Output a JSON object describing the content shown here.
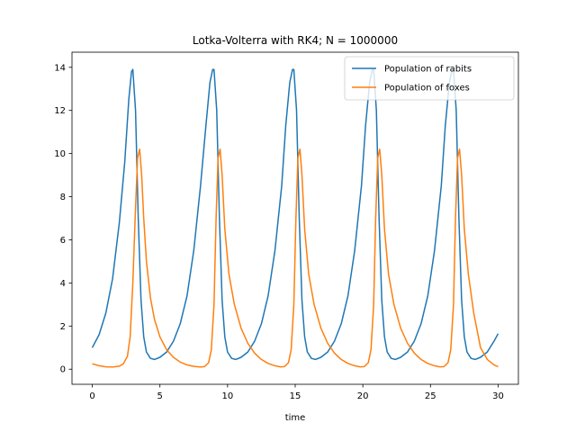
{
  "chart_data": {
    "type": "line",
    "title": "Lotka-Volterra with RK4; N = 1000000",
    "xlabel": "time",
    "ylabel": "",
    "xlim": [
      -1.5,
      31.5
    ],
    "ylim": [
      -0.7,
      14.7
    ],
    "xticks": [
      0,
      5,
      10,
      15,
      20,
      25,
      30
    ],
    "yticks": [
      0,
      2,
      4,
      6,
      8,
      10,
      12,
      14
    ],
    "grid": false,
    "legend_position": "top-right",
    "series": [
      {
        "name": "Population of rabits",
        "color": "#1f77b4",
        "x": [
          0,
          0.5,
          1,
          1.5,
          2,
          2.4,
          2.7,
          2.9,
          3.0,
          3.2,
          3.4,
          3.6,
          3.8,
          4.0,
          4.3,
          4.6,
          5.0,
          5.5,
          6.0,
          6.5,
          7.0,
          7.5,
          8.0,
          8.4,
          8.7,
          8.9,
          9.0,
          9.2,
          9.4,
          9.6,
          9.8,
          10.0,
          10.3,
          10.6,
          11.0,
          11.5,
          12.0,
          12.5,
          13.0,
          13.5,
          14.0,
          14.3,
          14.6,
          14.8,
          14.9,
          15.1,
          15.3,
          15.5,
          15.7,
          15.9,
          16.2,
          16.5,
          16.9,
          17.4,
          17.9,
          18.4,
          18.9,
          19.4,
          19.9,
          20.2,
          20.5,
          20.7,
          20.8,
          21.0,
          21.2,
          21.4,
          21.6,
          21.8,
          22.1,
          22.4,
          22.8,
          23.3,
          23.8,
          24.3,
          24.8,
          25.3,
          25.8,
          26.1,
          26.4,
          26.6,
          26.7,
          26.9,
          27.1,
          27.3,
          27.5,
          27.7,
          28.0,
          28.3,
          28.7,
          29.2,
          29.7,
          30.0
        ],
        "values": [
          1.0,
          1.6,
          2.6,
          4.2,
          6.8,
          9.6,
          12.5,
          13.8,
          13.9,
          12.0,
          7.0,
          3.2,
          1.5,
          0.8,
          0.5,
          0.45,
          0.55,
          0.8,
          1.3,
          2.1,
          3.4,
          5.5,
          8.5,
          11.3,
          13.3,
          13.9,
          13.9,
          12.0,
          7.0,
          3.2,
          1.5,
          0.8,
          0.5,
          0.45,
          0.55,
          0.8,
          1.3,
          2.1,
          3.4,
          5.5,
          8.5,
          11.3,
          13.3,
          13.9,
          13.9,
          12.0,
          7.0,
          3.2,
          1.5,
          0.8,
          0.5,
          0.45,
          0.55,
          0.8,
          1.3,
          2.1,
          3.4,
          5.5,
          8.5,
          11.3,
          13.3,
          13.9,
          13.9,
          12.0,
          7.0,
          3.2,
          1.5,
          0.8,
          0.5,
          0.45,
          0.55,
          0.8,
          1.3,
          2.1,
          3.4,
          5.5,
          8.5,
          11.3,
          13.3,
          13.9,
          13.9,
          12.0,
          7.0,
          3.2,
          1.5,
          0.8,
          0.5,
          0.45,
          0.55,
          0.8,
          1.3,
          1.65
        ]
      },
      {
        "name": "Population of foxes",
        "color": "#ff7f0e",
        "x": [
          0,
          0.5,
          1,
          1.5,
          2,
          2.3,
          2.6,
          2.8,
          3.0,
          3.2,
          3.35,
          3.5,
          3.65,
          3.8,
          4.0,
          4.3,
          4.6,
          5.0,
          5.5,
          6.0,
          6.5,
          7.0,
          7.5,
          8.0,
          8.3,
          8.6,
          8.8,
          9.0,
          9.15,
          9.3,
          9.45,
          9.6,
          9.8,
          10.1,
          10.5,
          11.0,
          11.5,
          12.0,
          12.5,
          13.0,
          13.5,
          13.9,
          14.2,
          14.5,
          14.7,
          14.9,
          15.05,
          15.2,
          15.35,
          15.5,
          15.7,
          16.0,
          16.4,
          16.9,
          17.4,
          17.9,
          18.4,
          18.9,
          19.4,
          19.8,
          20.1,
          20.4,
          20.6,
          20.8,
          20.95,
          21.1,
          21.25,
          21.4,
          21.6,
          21.9,
          22.3,
          22.8,
          23.3,
          23.8,
          24.3,
          24.8,
          25.3,
          25.7,
          26.0,
          26.3,
          26.5,
          26.7,
          26.85,
          27.0,
          27.15,
          27.3,
          27.5,
          27.8,
          28.2,
          28.7,
          29.2,
          29.7,
          30.0
        ],
        "values": [
          0.25,
          0.16,
          0.11,
          0.1,
          0.14,
          0.25,
          0.6,
          1.5,
          4.0,
          7.5,
          9.8,
          10.2,
          9.0,
          7.0,
          5.0,
          3.3,
          2.3,
          1.5,
          0.9,
          0.55,
          0.33,
          0.2,
          0.13,
          0.1,
          0.12,
          0.3,
          0.9,
          3.0,
          7.0,
          9.8,
          10.2,
          9.0,
          6.5,
          4.4,
          3.0,
          1.9,
          1.2,
          0.75,
          0.45,
          0.27,
          0.16,
          0.11,
          0.12,
          0.3,
          0.9,
          3.0,
          7.0,
          9.8,
          10.2,
          9.0,
          6.5,
          4.4,
          3.0,
          1.9,
          1.2,
          0.75,
          0.45,
          0.27,
          0.16,
          0.11,
          0.12,
          0.3,
          0.9,
          3.0,
          7.0,
          9.8,
          10.2,
          9.0,
          6.5,
          4.4,
          3.0,
          1.9,
          1.2,
          0.75,
          0.45,
          0.27,
          0.16,
          0.11,
          0.12,
          0.3,
          0.9,
          3.0,
          7.0,
          9.8,
          10.2,
          9.0,
          6.5,
          4.4,
          2.6,
          1.0,
          0.45,
          0.2,
          0.12
        ]
      }
    ]
  }
}
